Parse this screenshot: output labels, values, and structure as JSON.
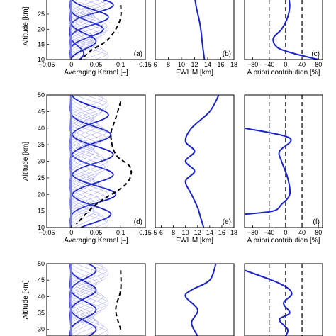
{
  "chart_data": [
    {
      "type": "line",
      "panel_label": "(a)",
      "xlabel": "Averaging Kernel [–]",
      "ylabel": "Altitude [km]",
      "xlim": [
        -0.05,
        0.15
      ],
      "ylim": [
        10,
        32
      ],
      "xticks": [
        "−0.05",
        "0",
        "0.05",
        "0.1",
        "0.15"
      ],
      "yticks": [
        "10",
        "15",
        "20",
        "25"
      ],
      "series": [
        {
          "style": "thick",
          "levels_km": [
            12,
            16,
            20,
            24,
            28
          ],
          "peak_values": [
            0.025,
            0.05,
            0.065,
            0.075,
            0.085
          ]
        },
        {
          "style": "thin",
          "levels_km": "11–31 every 1 km"
        },
        {
          "style": "dashed",
          "x": [
            0.1,
            0.1,
            0.09,
            0.07,
            0.04,
            0.02
          ],
          "y": [
            28,
            24,
            20,
            16,
            13,
            10
          ]
        }
      ]
    },
    {
      "type": "line",
      "panel_label": "(b)",
      "xlabel": "FWHM [km]",
      "xlim": [
        6,
        18
      ],
      "ylim": [
        10,
        32
      ],
      "xticks": [
        "6",
        "8",
        "10",
        "12",
        "14",
        "16",
        "18"
      ],
      "series": [
        {
          "x": [
            12.0,
            12.2,
            12.5,
            12.8,
            13.0,
            13.2,
            13.5
          ],
          "y": [
            31,
            28,
            25,
            22,
            19,
            15,
            10
          ]
        }
      ]
    },
    {
      "type": "line",
      "panel_label": "(c)",
      "xlabel": "A priori contribution [%]",
      "xlim": [
        -100,
        90
      ],
      "ylim": [
        10,
        32
      ],
      "xticks": [
        "−80",
        "−40",
        "0",
        "40",
        "80"
      ],
      "series": [
        {
          "x": [
            5,
            10,
            5,
            -10,
            -30,
            -20,
            20,
            80
          ],
          "y": [
            32,
            28,
            24,
            20,
            17,
            14,
            12,
            10
          ]
        }
      ],
      "reference_lines_x": [
        -40,
        0,
        40
      ]
    },
    {
      "type": "line",
      "panel_label": "(d)",
      "xlabel": "Averaging Kernel [–]",
      "ylabel": "Altitude [km]",
      "xlim": [
        -0.05,
        0.15
      ],
      "ylim": [
        10,
        50
      ],
      "xticks": [
        "−0.05",
        "0",
        "0.05",
        "0.1",
        "0.15"
      ],
      "yticks": [
        "10",
        "15",
        "20",
        "25",
        "30",
        "35",
        "40",
        "45",
        "50"
      ],
      "series": [
        {
          "style": "thick",
          "levels_km": [
            14,
            20,
            26,
            32,
            38,
            44
          ],
          "peak_values": [
            0.08,
            0.09,
            0.085,
            0.085,
            0.08,
            0.075
          ]
        },
        {
          "style": "thin",
          "levels_km": "11–49 every 1 km"
        },
        {
          "style": "dashed",
          "x": [
            0.1,
            0.09,
            0.08,
            0.09,
            0.12,
            0.11,
            0.05,
            0.01
          ],
          "y": [
            48,
            43,
            38,
            32,
            28,
            23,
            17,
            11
          ]
        }
      ]
    },
    {
      "type": "line",
      "panel_label": "(e)",
      "xlabel": "FWHM [km]",
      "xlim": [
        5,
        18
      ],
      "ylim": [
        10,
        50
      ],
      "xticks": [
        "5",
        "6",
        "8",
        "10",
        "12",
        "14",
        "16",
        "18"
      ],
      "series": [
        {
          "x": [
            15.5,
            14,
            11,
            10,
            11.5,
            10,
            11.5,
            10,
            11,
            12,
            12.5,
            13
          ],
          "y": [
            50,
            45,
            40,
            36,
            33,
            30,
            27,
            24,
            20,
            16,
            13,
            10
          ]
        }
      ]
    },
    {
      "type": "line",
      "panel_label": "(f)",
      "xlabel": "A priori contribution [%]",
      "xlim": [
        -100,
        90
      ],
      "ylim": [
        10,
        50
      ],
      "xticks": [
        "−80",
        "−40",
        "0",
        "40",
        "80"
      ],
      "series": [
        {
          "x": [
            -100,
            10,
            -15,
            -10,
            5,
            10,
            -10,
            -30,
            -100
          ],
          "y": [
            40,
            37,
            33,
            30,
            25,
            20,
            17,
            15,
            14
          ]
        }
      ],
      "reference_lines_x": [
        -40,
        0,
        40
      ]
    },
    {
      "type": "line",
      "ylabel": "Altitude [km]",
      "xlim": [
        -0.05,
        0.15
      ],
      "ylim": [
        28,
        50
      ],
      "yticks": [
        "30",
        "35",
        "40",
        "45",
        "50"
      ],
      "series": [
        {
          "style": "thick",
          "levels_km": [
            30,
            36,
            42,
            48
          ],
          "peak_values": [
            0.05,
            0.05,
            0.05,
            0.05
          ]
        },
        {
          "style": "thin",
          "levels_km": "29–49 every 1 km"
        },
        {
          "style": "dashed",
          "x": [
            0.1,
            0.1,
            0.09,
            0.1
          ],
          "y": [
            48,
            42,
            36,
            30
          ]
        }
      ]
    },
    {
      "type": "line",
      "xlim": [
        5,
        18
      ],
      "ylim": [
        28,
        50
      ],
      "series": [
        {
          "x": [
            15,
            14,
            11,
            10,
            12,
            11,
            12
          ],
          "y": [
            50,
            45,
            42,
            40,
            36,
            32,
            28
          ]
        }
      ]
    },
    {
      "type": "line",
      "xlim": [
        -100,
        90
      ],
      "ylim": [
        28,
        50
      ],
      "series": [
        {
          "x": [
            -100,
            -15,
            15,
            -5,
            10,
            -15,
            5,
            0
          ],
          "y": [
            48,
            44,
            41,
            38,
            35,
            33,
            30,
            28
          ]
        }
      ],
      "reference_lines_x": [
        -40,
        0,
        40
      ]
    }
  ]
}
